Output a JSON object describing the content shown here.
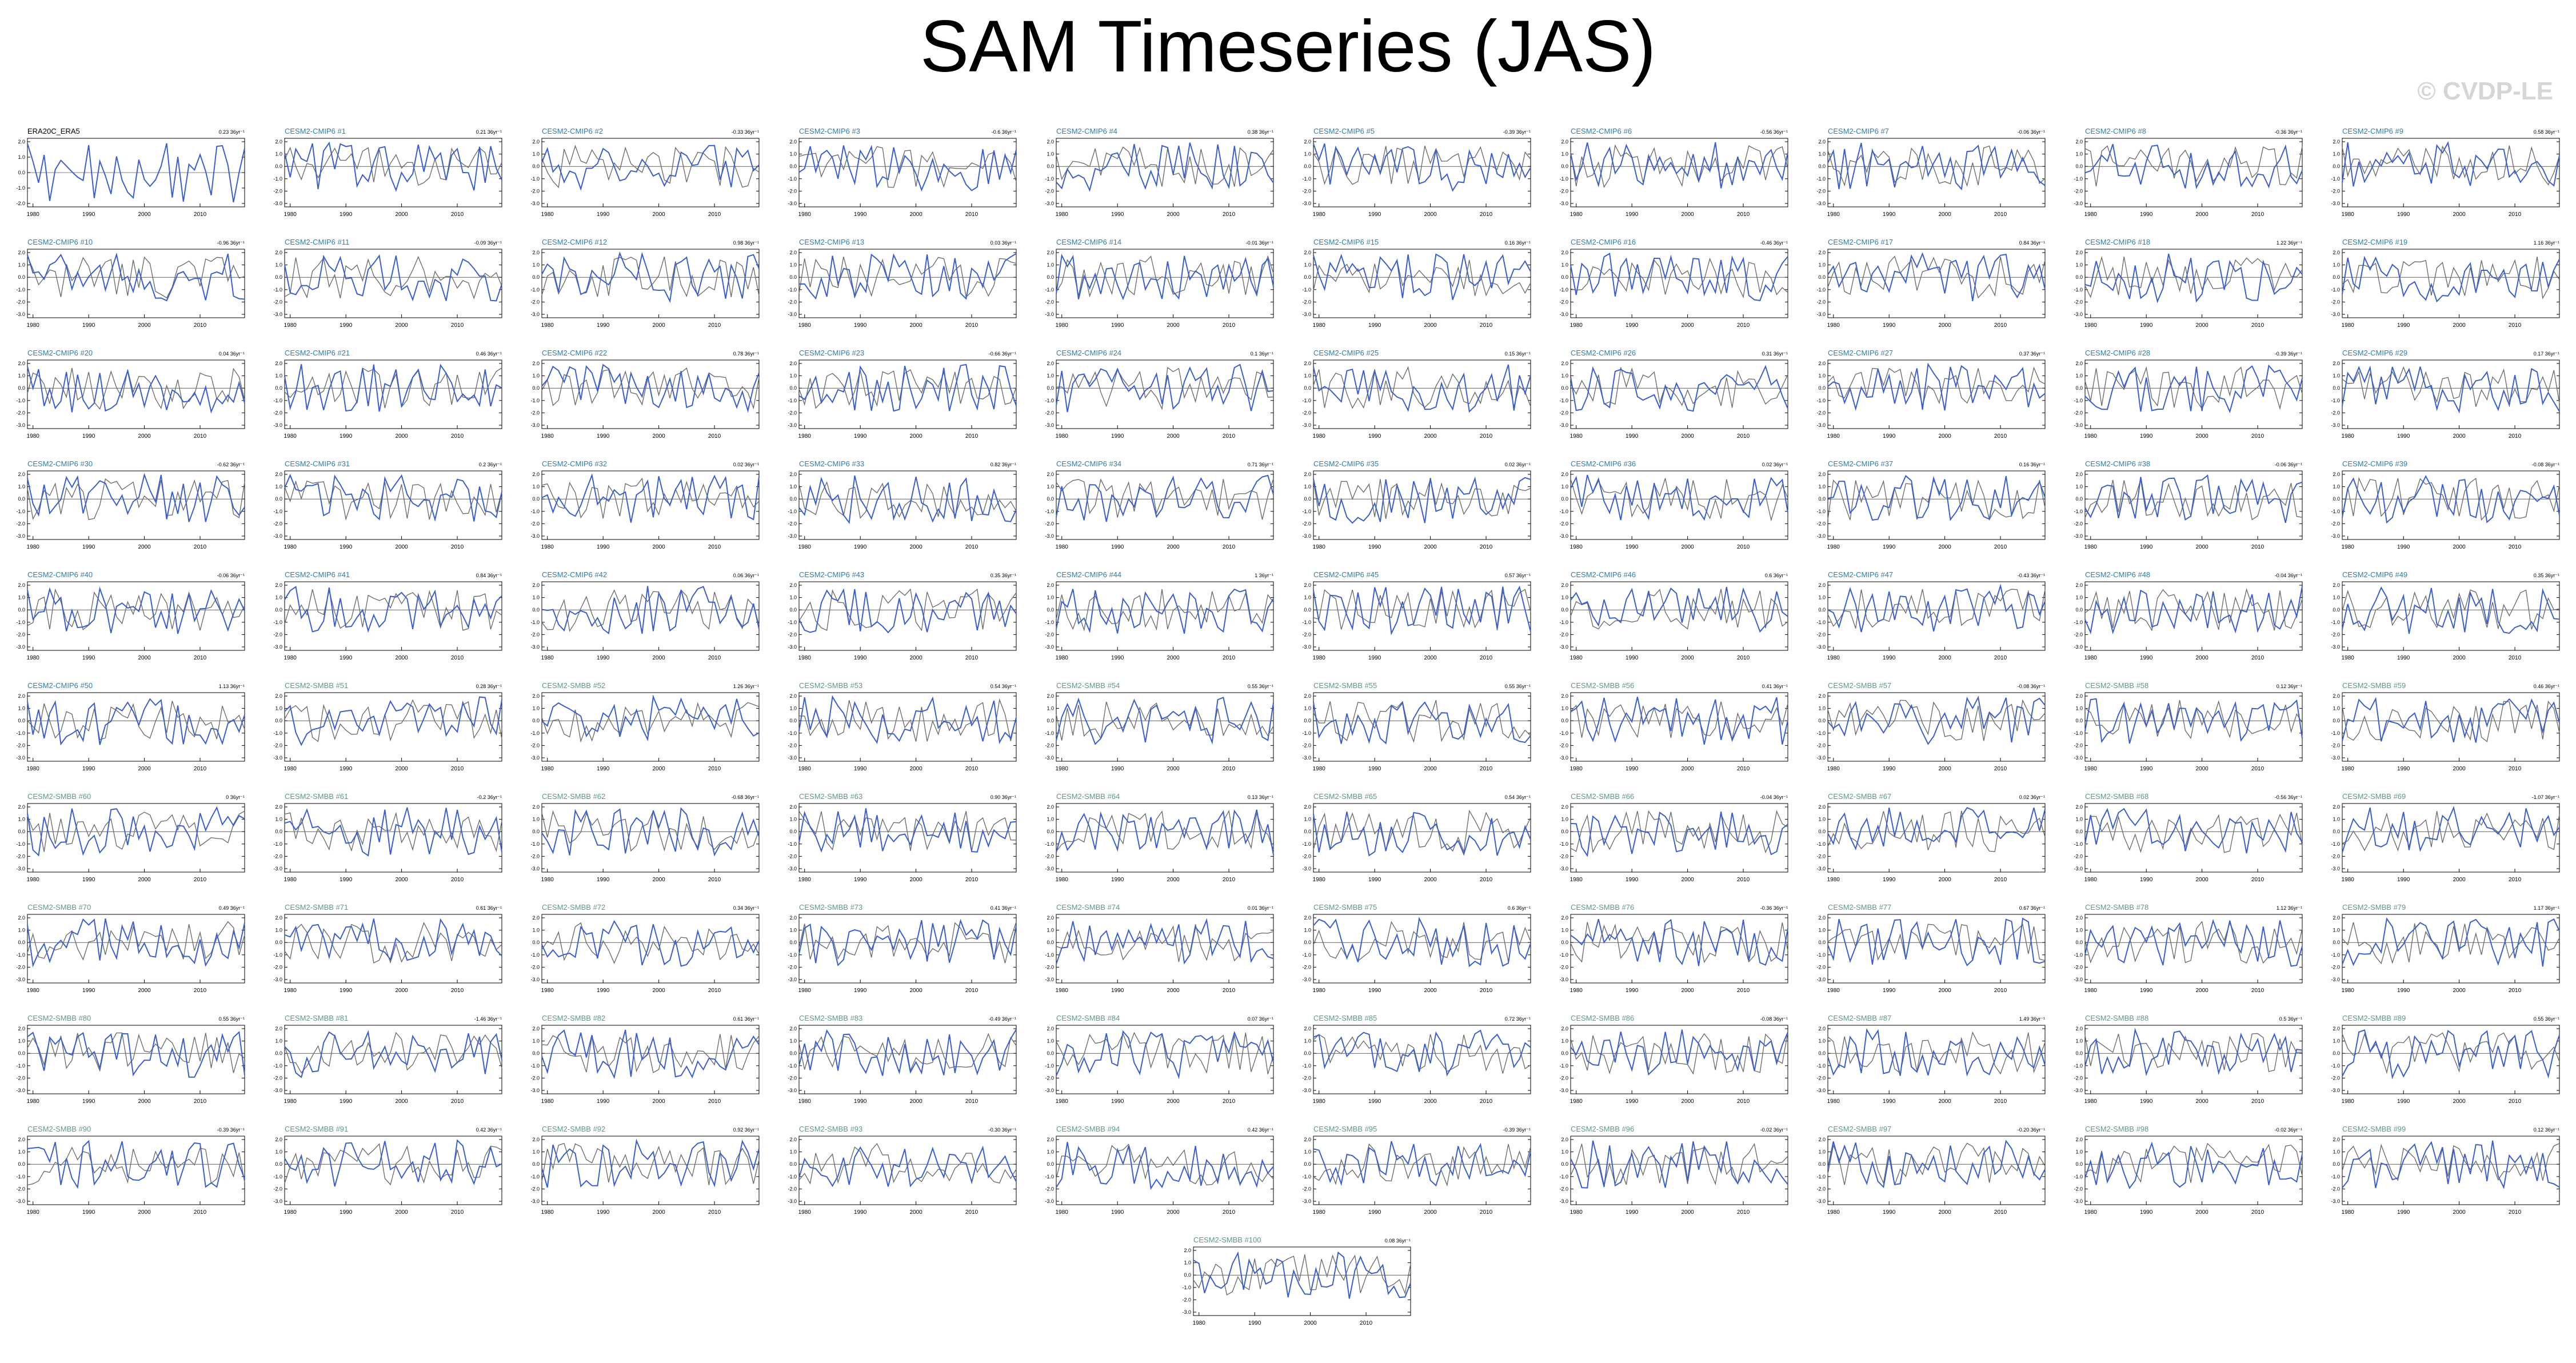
{
  "figure": {
    "title": "SAM Timeseries (JAS)",
    "watermark": "© CVDP-LE"
  },
  "colors": {
    "observed": "#3a5fcd",
    "ensemble_mean": "#6e6e6e",
    "title_obs": "#000000",
    "title_cmip6": "#2a7fb0",
    "title_smbb": "#5a9a8a"
  },
  "chart_data": {
    "type": "line",
    "x_ticks": [
      1980,
      1990,
      2000,
      2010
    ],
    "xlim": [
      1979,
      2018
    ],
    "panels": [
      {
        "title": "ERA20C_ERA5",
        "trend": "0.23 36yr⁻¹",
        "group": "obs",
        "yticks": [
          "2.0",
          "1.0",
          "0.0",
          "-1.0",
          "-2.0"
        ]
      },
      {
        "title": "CESM2-CMIP6 #1",
        "trend": "0.21 36yr⁻¹",
        "group": "cmip6",
        "yticks": [
          "2.0",
          "1.0",
          "0.0",
          "-1.0",
          "-2.0",
          "-3.0"
        ]
      },
      {
        "title": "CESM2-CMIP6 #2",
        "trend": "-0.33 36yr⁻¹",
        "group": "cmip6"
      },
      {
        "title": "CESM2-CMIP6 #3",
        "trend": "-0.6 36yr⁻¹",
        "group": "cmip6"
      },
      {
        "title": "CESM2-CMIP6 #4",
        "trend": "0.38 36yr⁻¹",
        "group": "cmip6"
      },
      {
        "title": "CESM2-CMIP6 #5",
        "trend": "-0.39 36yr⁻¹",
        "group": "cmip6"
      },
      {
        "title": "CESM2-CMIP6 #6",
        "trend": "-0.56 36yr⁻¹",
        "group": "cmip6"
      },
      {
        "title": "CESM2-CMIP6 #7",
        "trend": "-0.06 36yr⁻¹",
        "group": "cmip6"
      },
      {
        "title": "CESM2-CMIP6 #8",
        "trend": "-0.36 36yr⁻¹",
        "group": "cmip6"
      },
      {
        "title": "CESM2-CMIP6 #9",
        "trend": "0.58 36yr⁻¹",
        "group": "cmip6"
      },
      {
        "title": "CESM2-CMIP6 #10",
        "trend": "-0.96 36yr⁻¹",
        "group": "cmip6"
      },
      {
        "title": "CESM2-CMIP6 #11",
        "trend": "-0.09 36yr⁻¹",
        "group": "cmip6"
      },
      {
        "title": "CESM2-CMIP6 #12",
        "trend": "0.98 36yr⁻¹",
        "group": "cmip6"
      },
      {
        "title": "CESM2-CMIP6 #13",
        "trend": "0.03 36yr⁻¹",
        "group": "cmip6"
      },
      {
        "title": "CESM2-CMIP6 #14",
        "trend": "-0.01 36yr⁻¹",
        "group": "cmip6"
      },
      {
        "title": "CESM2-CMIP6 #15",
        "trend": "0.16 36yr⁻¹",
        "group": "cmip6"
      },
      {
        "title": "CESM2-CMIP6 #16",
        "trend": "-0.46 36yr⁻¹",
        "group": "cmip6"
      },
      {
        "title": "CESM2-CMIP6 #17",
        "trend": "0.84 36yr⁻¹",
        "group": "cmip6"
      },
      {
        "title": "CESM2-CMIP6 #18",
        "trend": "1.22 36yr⁻¹",
        "group": "cmip6"
      },
      {
        "title": "CESM2-CMIP6 #19",
        "trend": "1.16 36yr⁻¹",
        "group": "cmip6"
      },
      {
        "title": "CESM2-CMIP6 #20",
        "trend": "0.04 36yr⁻¹",
        "group": "cmip6"
      },
      {
        "title": "CESM2-CMIP6 #21",
        "trend": "0.46 36yr⁻¹",
        "group": "cmip6"
      },
      {
        "title": "CESM2-CMIP6 #22",
        "trend": "0.78 36yr⁻¹",
        "group": "cmip6"
      },
      {
        "title": "CESM2-CMIP6 #23",
        "trend": "-0.66 36yr⁻¹",
        "group": "cmip6"
      },
      {
        "title": "CESM2-CMIP6 #24",
        "trend": "0.1 36yr⁻¹",
        "group": "cmip6"
      },
      {
        "title": "CESM2-CMIP6 #25",
        "trend": "0.15 36yr⁻¹",
        "group": "cmip6"
      },
      {
        "title": "CESM2-CMIP6 #26",
        "trend": "0.31 36yr⁻¹",
        "group": "cmip6"
      },
      {
        "title": "CESM2-CMIP6 #27",
        "trend": "0.37 36yr⁻¹",
        "group": "cmip6"
      },
      {
        "title": "CESM2-CMIP6 #28",
        "trend": "-0.39 36yr⁻¹",
        "group": "cmip6"
      },
      {
        "title": "CESM2-CMIP6 #29",
        "trend": "0.17 36yr⁻¹",
        "group": "cmip6"
      },
      {
        "title": "CESM2-CMIP6 #30",
        "trend": "-0.62 36yr⁻¹",
        "group": "cmip6"
      },
      {
        "title": "CESM2-CMIP6 #31",
        "trend": "0.2 36yr⁻¹",
        "group": "cmip6"
      },
      {
        "title": "CESM2-CMIP6 #32",
        "trend": "0.02 36yr⁻¹",
        "group": "cmip6"
      },
      {
        "title": "CESM2-CMIP6 #33",
        "trend": "0.82 36yr⁻¹",
        "group": "cmip6"
      },
      {
        "title": "CESM2-CMIP6 #34",
        "trend": "0.71 36yr⁻¹",
        "group": "cmip6"
      },
      {
        "title": "CESM2-CMIP6 #35",
        "trend": "0.02 36yr⁻¹",
        "group": "cmip6"
      },
      {
        "title": "CESM2-CMIP6 #36",
        "trend": "0.02 36yr⁻¹",
        "group": "cmip6"
      },
      {
        "title": "CESM2-CMIP6 #37",
        "trend": "0.16 36yr⁻¹",
        "group": "cmip6"
      },
      {
        "title": "CESM2-CMIP6 #38",
        "trend": "-0.06 36yr⁻¹",
        "group": "cmip6"
      },
      {
        "title": "CESM2-CMIP6 #39",
        "trend": "-0.08 36yr⁻¹",
        "group": "cmip6"
      },
      {
        "title": "CESM2-CMIP6 #40",
        "trend": "-0.06 36yr⁻¹",
        "group": "cmip6"
      },
      {
        "title": "CESM2-CMIP6 #41",
        "trend": "0.84 36yr⁻¹",
        "group": "cmip6"
      },
      {
        "title": "CESM2-CMIP6 #42",
        "trend": "0.06 36yr⁻¹",
        "group": "cmip6"
      },
      {
        "title": "CESM2-CMIP6 #43",
        "trend": "0.35 36yr⁻¹",
        "group": "cmip6"
      },
      {
        "title": "CESM2-CMIP6 #44",
        "trend": "1 36yr⁻¹",
        "group": "cmip6"
      },
      {
        "title": "CESM2-CMIP6 #45",
        "trend": "0.57 36yr⁻¹",
        "group": "cmip6"
      },
      {
        "title": "CESM2-CMIP6 #46",
        "trend": "0.6 36yr⁻¹",
        "group": "cmip6"
      },
      {
        "title": "CESM2-CMIP6 #47",
        "trend": "-0.43 36yr⁻¹",
        "group": "cmip6"
      },
      {
        "title": "CESM2-CMIP6 #48",
        "trend": "-0.04 36yr⁻¹",
        "group": "cmip6"
      },
      {
        "title": "CESM2-CMIP6 #49",
        "trend": "0.35 36yr⁻¹",
        "group": "cmip6"
      },
      {
        "title": "CESM2-CMIP6 #50",
        "trend": "1.13 36yr⁻¹",
        "group": "cmip6"
      },
      {
        "title": "CESM2-SMBB #51",
        "trend": "0.28 36yr⁻¹",
        "group": "smbb"
      },
      {
        "title": "CESM2-SMBB #52",
        "trend": "1.26 36yr⁻¹",
        "group": "smbb"
      },
      {
        "title": "CESM2-SMBB #53",
        "trend": "0.54 36yr⁻¹",
        "group": "smbb"
      },
      {
        "title": "CESM2-SMBB #54",
        "trend": "0.55 36yr⁻¹",
        "group": "smbb"
      },
      {
        "title": "CESM2-SMBB #55",
        "trend": "0.55 36yr⁻¹",
        "group": "smbb"
      },
      {
        "title": "CESM2-SMBB #56",
        "trend": "0.41 36yr⁻¹",
        "group": "smbb"
      },
      {
        "title": "CESM2-SMBB #57",
        "trend": "-0.08 36yr⁻¹",
        "group": "smbb"
      },
      {
        "title": "CESM2-SMBB #58",
        "trend": "0.12 36yr⁻¹",
        "group": "smbb"
      },
      {
        "title": "CESM2-SMBB #59",
        "trend": "0.46 36yr⁻¹",
        "group": "smbb"
      },
      {
        "title": "CESM2-SMBB #60",
        "trend": "0 36yr⁻¹",
        "group": "smbb"
      },
      {
        "title": "CESM2-SMBB #61",
        "trend": "-0.2 36yr⁻¹",
        "group": "smbb"
      },
      {
        "title": "CESM2-SMBB #62",
        "trend": "-0.68 36yr⁻¹",
        "group": "smbb"
      },
      {
        "title": "CESM2-SMBB #63",
        "trend": "0.90 36yr⁻¹",
        "group": "smbb"
      },
      {
        "title": "CESM2-SMBB #64",
        "trend": "0.13 36yr⁻¹",
        "group": "smbb"
      },
      {
        "title": "CESM2-SMBB #65",
        "trend": "0.54 36yr⁻¹",
        "group": "smbb"
      },
      {
        "title": "CESM2-SMBB #66",
        "trend": "-0.04 36yr⁻¹",
        "group": "smbb"
      },
      {
        "title": "CESM2-SMBB #67",
        "trend": "0.02 36yr⁻¹",
        "group": "smbb"
      },
      {
        "title": "CESM2-SMBB #68",
        "trend": "-0.56 36yr⁻¹",
        "group": "smbb"
      },
      {
        "title": "CESM2-SMBB #69",
        "trend": "-1.07 36yr⁻¹",
        "group": "smbb"
      },
      {
        "title": "CESM2-SMBB #70",
        "trend": "0.49 36yr⁻¹",
        "group": "smbb"
      },
      {
        "title": "CESM2-SMBB #71",
        "trend": "0.61 36yr⁻¹",
        "group": "smbb"
      },
      {
        "title": "CESM2-SMBB #72",
        "trend": "0.34 36yr⁻¹",
        "group": "smbb"
      },
      {
        "title": "CESM2-SMBB #73",
        "trend": "0.41 36yr⁻¹",
        "group": "smbb"
      },
      {
        "title": "CESM2-SMBB #74",
        "trend": "0.01 36yr⁻¹",
        "group": "smbb"
      },
      {
        "title": "CESM2-SMBB #75",
        "trend": "0.6 36yr⁻¹",
        "group": "smbb"
      },
      {
        "title": "CESM2-SMBB #76",
        "trend": "-0.36 36yr⁻¹",
        "group": "smbb"
      },
      {
        "title": "CESM2-SMBB #77",
        "trend": "0.67 36yr⁻¹",
        "group": "smbb"
      },
      {
        "title": "CESM2-SMBB #78",
        "trend": "1.12 36yr⁻¹",
        "group": "smbb"
      },
      {
        "title": "CESM2-SMBB #79",
        "trend": "1.17 36yr⁻¹",
        "group": "smbb"
      },
      {
        "title": "CESM2-SMBB #80",
        "trend": "0.55 36yr⁻¹",
        "group": "smbb"
      },
      {
        "title": "CESM2-SMBB #81",
        "trend": "-1.46 36yr⁻¹",
        "group": "smbb"
      },
      {
        "title": "CESM2-SMBB #82",
        "trend": "0.61 36yr⁻¹",
        "group": "smbb"
      },
      {
        "title": "CESM2-SMBB #83",
        "trend": "-0.49 36yr⁻¹",
        "group": "smbb"
      },
      {
        "title": "CESM2-SMBB #84",
        "trend": "0.07 36yr⁻¹",
        "group": "smbb"
      },
      {
        "title": "CESM2-SMBB #85",
        "trend": "0.72 36yr⁻¹",
        "group": "smbb"
      },
      {
        "title": "CESM2-SMBB #86",
        "trend": "-0.08 36yr⁻¹",
        "group": "smbb"
      },
      {
        "title": "CESM2-SMBB #87",
        "trend": "1.49 36yr⁻¹",
        "group": "smbb"
      },
      {
        "title": "CESM2-SMBB #88",
        "trend": "0.5 36yr⁻¹",
        "group": "smbb"
      },
      {
        "title": "CESM2-SMBB #89",
        "trend": "0.55 36yr⁻¹",
        "group": "smbb"
      },
      {
        "title": "CESM2-SMBB #90",
        "trend": "-0.39 36yr⁻¹",
        "group": "smbb"
      },
      {
        "title": "CESM2-SMBB #91",
        "trend": "0.42 36yr⁻¹",
        "group": "smbb"
      },
      {
        "title": "CESM2-SMBB #92",
        "trend": "0.92 36yr⁻¹",
        "group": "smbb"
      },
      {
        "title": "CESM2-SMBB #93",
        "trend": "-0.30 36yr⁻¹",
        "group": "smbb"
      },
      {
        "title": "CESM2-SMBB #94",
        "trend": "0.42 36yr⁻¹",
        "group": "smbb"
      },
      {
        "title": "CESM2-SMBB #95",
        "trend": "-0.39 36yr⁻¹",
        "group": "smbb"
      },
      {
        "title": "CESM2-SMBB #96",
        "trend": "-0.02 36yr⁻¹",
        "group": "smbb"
      },
      {
        "title": "CESM2-SMBB #97",
        "trend": "-0.20 36yr⁻¹",
        "group": "smbb"
      },
      {
        "title": "CESM2-SMBB #98",
        "trend": "-0.02 36yr⁻¹",
        "group": "smbb"
      },
      {
        "title": "CESM2-SMBB #99",
        "trend": "0.12 36yr⁻¹",
        "group": "smbb"
      },
      {
        "title": "CESM2-SMBB #100",
        "trend": "0.08 36yr⁻¹",
        "group": "smbb"
      }
    ]
  }
}
